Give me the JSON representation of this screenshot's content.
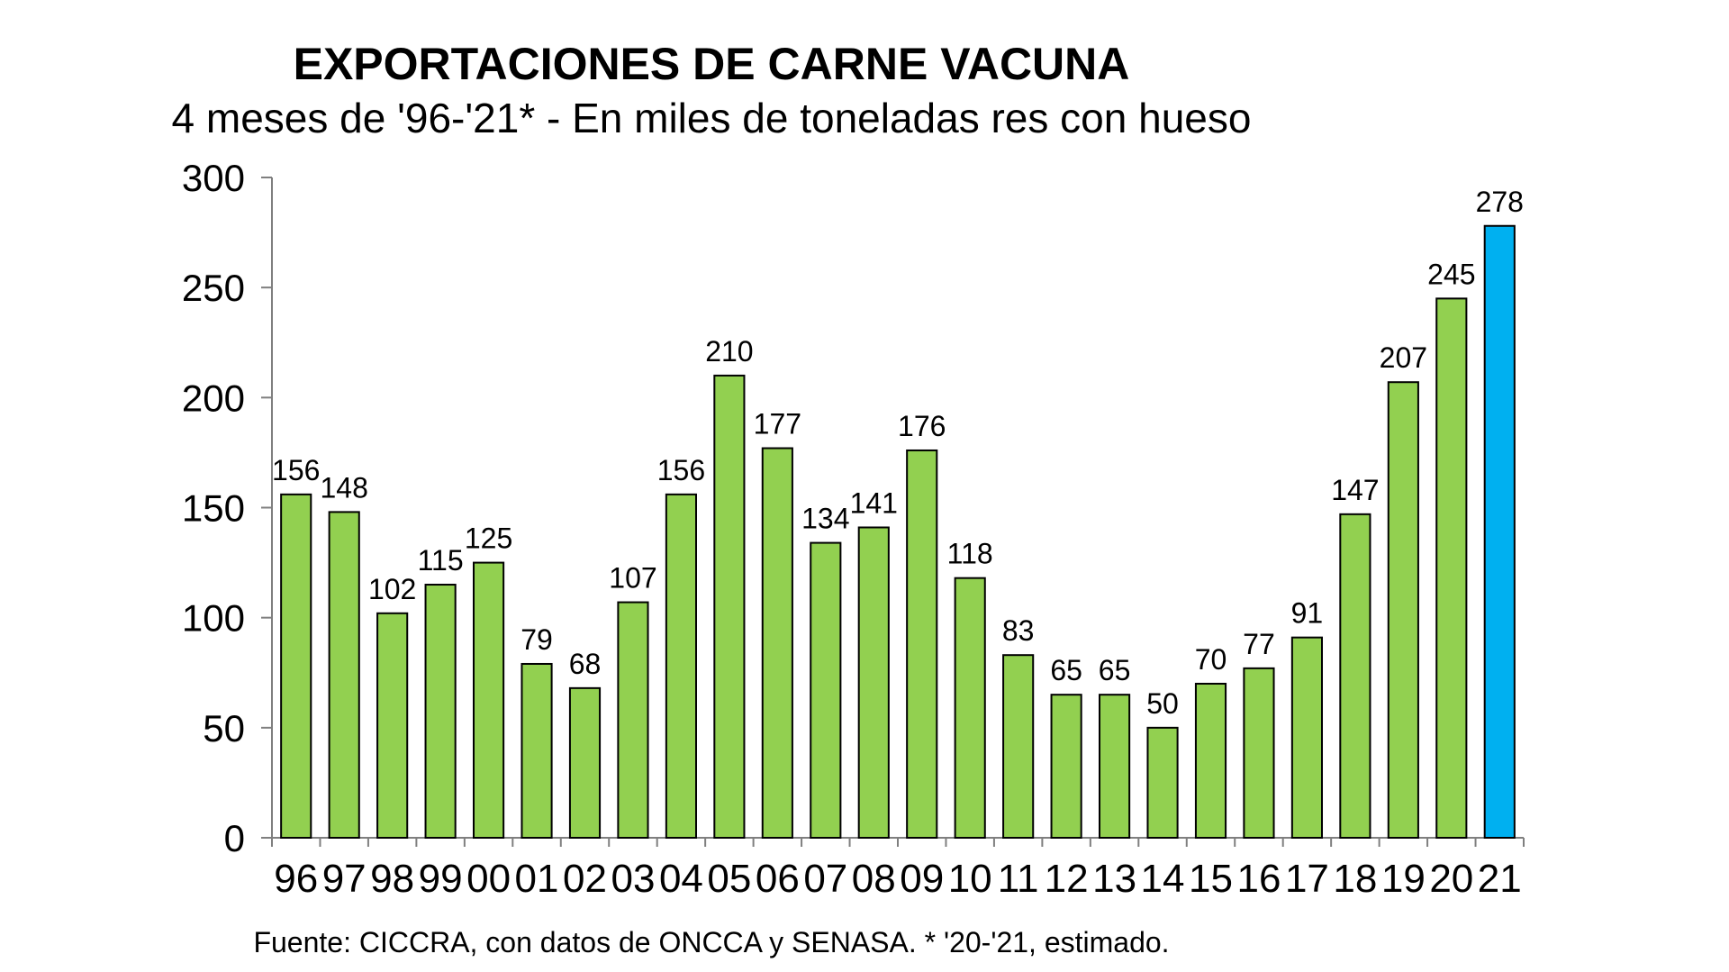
{
  "chart_data": {
    "type": "bar",
    "title": "EXPORTACIONES DE CARNE VACUNA",
    "subtitle": "4 meses de '96-'21* - En miles de toneladas res con hueso",
    "source": "Fuente: CICCRA, con datos de ONCCA y SENASA. * '20-'21, estimado.",
    "categories": [
      "96",
      "97",
      "98",
      "99",
      "00",
      "01",
      "02",
      "03",
      "04",
      "05",
      "06",
      "07",
      "08",
      "09",
      "10",
      "11",
      "12",
      "13",
      "14",
      "15",
      "16",
      "17",
      "18",
      "19",
      "20",
      "21"
    ],
    "values": [
      156,
      148,
      102,
      115,
      125,
      79,
      68,
      107,
      156,
      210,
      177,
      134,
      141,
      176,
      118,
      83,
      65,
      65,
      50,
      70,
      77,
      91,
      147,
      207,
      245,
      278
    ],
    "highlight_index": 25,
    "ylim": [
      0,
      300
    ],
    "yticks": [
      0,
      50,
      100,
      150,
      200,
      250,
      300
    ],
    "xlabel": "",
    "ylabel": "",
    "grid": false,
    "colors": {
      "bar": "#92d050",
      "highlight": "#00b0f0",
      "border": "#000000"
    }
  }
}
